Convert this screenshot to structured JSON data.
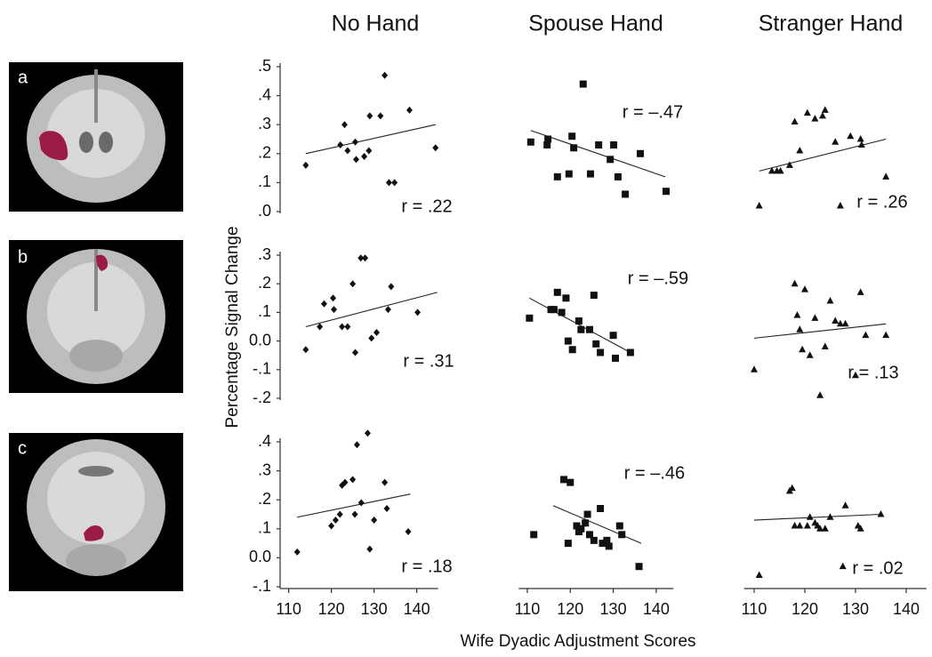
{
  "images": [
    {
      "label": "a"
    },
    {
      "label": "b"
    },
    {
      "label": "c"
    }
  ],
  "chart_data": [
    {
      "type": "scatter",
      "title": "No Hand",
      "marker": "diamond",
      "color": "#111111",
      "annotation": "r = .22",
      "x": [
        114,
        122.1,
        123.1,
        123.8,
        125.6,
        125.8,
        127.7,
        128.8,
        129,
        131.5,
        132.5,
        133.5,
        134.8,
        138.3,
        144.4
      ],
      "values": [
        0.16,
        0.23,
        0.3,
        0.21,
        0.24,
        0.18,
        0.19,
        0.21,
        0.33,
        0.33,
        0.47,
        0.1,
        0.1,
        0.35,
        0.22
      ],
      "trend": {
        "x": [
          114,
          144.4
        ],
        "y": [
          0.2,
          0.3
        ]
      },
      "xlim": [
        108,
        145
      ],
      "ylim": [
        0,
        0.5
      ],
      "yticks": [
        {
          "value": 0.5,
          "label": ".5"
        },
        {
          "value": 0.4,
          "label": ".4"
        },
        {
          "value": 0.3,
          "label": ".3"
        },
        {
          "value": 0.2,
          "label": ".2"
        },
        {
          "value": 0.1,
          "label": ".1"
        },
        {
          "value": 0,
          "label": ".0"
        }
      ]
    },
    {
      "type": "scatter",
      "title": "Spouse Hand",
      "marker": "square",
      "color": "#111111",
      "annotation": "r = –.47",
      "x": [
        110.8,
        114.6,
        114.8,
        117,
        119.7,
        120.4,
        120.8,
        123,
        124.7,
        126.6,
        129.3,
        130.1,
        131.1,
        132.8,
        136.3,
        142.3
      ],
      "values": [
        0.24,
        0.23,
        0.25,
        0.12,
        0.13,
        0.26,
        0.22,
        0.44,
        0.13,
        0.23,
        0.18,
        0.23,
        0.12,
        0.06,
        0.2,
        0.07
      ],
      "trend": {
        "x": [
          110.8,
          142.1
        ],
        "y": [
          0.28,
          0.12
        ]
      },
      "xlim": [
        108,
        144
      ],
      "ylim": [
        0,
        0.5
      ]
    },
    {
      "type": "scatter",
      "title": "Stranger Hand",
      "marker": "triangle",
      "color": "#111111",
      "annotation": "r = .26",
      "x": [
        111,
        113.5,
        114.5,
        115.2,
        117,
        118,
        119,
        120.5,
        122,
        123.5,
        124,
        126,
        127,
        129,
        131,
        131.2,
        136
      ],
      "values": [
        0.02,
        0.14,
        0.14,
        0.14,
        0.16,
        0.31,
        0.21,
        0.34,
        0.32,
        0.33,
        0.35,
        0.24,
        0.02,
        0.26,
        0.25,
        0.23,
        0.12
      ],
      "trend": {
        "x": [
          111,
          136
        ],
        "y": [
          0.14,
          0.25
        ]
      },
      "xlim": [
        108,
        144
      ],
      "ylim": [
        0,
        0.5
      ]
    },
    {
      "type": "scatter",
      "marker": "diamond",
      "color": "#111111",
      "annotation": "r = .31",
      "ylabel": "Percentage Signal Change",
      "x": [
        114,
        117.3,
        118.3,
        120.4,
        120.6,
        122.5,
        123.8,
        125,
        125.6,
        126.9,
        127.9,
        129.4,
        130.6,
        133.3,
        134,
        140.2
      ],
      "values": [
        -0.03,
        0.05,
        0.13,
        0.15,
        0.11,
        0.05,
        0.05,
        0.2,
        -0.04,
        0.29,
        0.29,
        0.01,
        0.03,
        0.11,
        0.19,
        0.1
      ],
      "trend": {
        "x": [
          114,
          144.8
        ],
        "y": [
          0.05,
          0.17
        ]
      },
      "xlim": [
        108,
        145
      ],
      "ylim": [
        -0.2,
        0.3
      ],
      "yticks": [
        {
          "value": 0.3,
          "label": ".3"
        },
        {
          "value": 0.2,
          "label": ".2"
        },
        {
          "value": 0.1,
          "label": ".1"
        },
        {
          "value": 0,
          "label": "0.0"
        },
        {
          "value": -0.1,
          "label": "-.1"
        },
        {
          "value": -0.2,
          "label": "-.2"
        }
      ]
    },
    {
      "type": "scatter",
      "marker": "square",
      "color": "#111111",
      "annotation": "r = –.59",
      "x": [
        110.5,
        115.5,
        116.2,
        117,
        118,
        119,
        119.5,
        120.5,
        122,
        122.5,
        124.5,
        125.5,
        126,
        127,
        130,
        130.5,
        134
      ],
      "values": [
        0.08,
        0.11,
        0.11,
        0.17,
        0.1,
        0.15,
        0,
        -0.03,
        0.07,
        0.04,
        0.04,
        0.16,
        -0.01,
        -0.04,
        0.02,
        -0.06,
        -0.04
      ],
      "trend": {
        "x": [
          110.5,
          134
        ],
        "y": [
          0.15,
          -0.04
        ]
      },
      "xlim": [
        108,
        144
      ],
      "ylim": [
        -0.2,
        0.3
      ]
    },
    {
      "type": "scatter",
      "marker": "triangle",
      "color": "#111111",
      "annotation": "r = .13",
      "x": [
        110,
        118,
        118.5,
        119,
        119.5,
        120,
        121,
        122,
        123,
        124,
        125,
        126,
        127,
        128,
        130,
        131,
        132,
        136
      ],
      "values": [
        -0.1,
        0.2,
        0.09,
        0.04,
        -0.03,
        0.18,
        -0.05,
        0.08,
        -0.19,
        -0.02,
        0.14,
        0.07,
        0.06,
        0.06,
        -0.12,
        0.17,
        0.02,
        0.02
      ],
      "trend": {
        "x": [
          110,
          136
        ],
        "y": [
          0.01,
          0.06
        ]
      },
      "xlim": [
        108,
        144
      ],
      "ylim": [
        -0.2,
        0.3
      ]
    },
    {
      "type": "scatter",
      "marker": "diamond",
      "color": "#111111",
      "annotation": "r = .18",
      "x": [
        112,
        120,
        121,
        122,
        122.5,
        123.2,
        125,
        125.5,
        126,
        127,
        128.5,
        129,
        130,
        132.5,
        133,
        138
      ],
      "values": [
        0.02,
        0.11,
        0.13,
        0.15,
        0.25,
        0.26,
        0.27,
        0.15,
        0.39,
        0.19,
        0.43,
        0.03,
        0.13,
        0.26,
        0.17,
        0.09
      ],
      "trend": {
        "x": [
          112,
          138.5
        ],
        "y": [
          0.14,
          0.22
        ]
      },
      "xlim": [
        108,
        145
      ],
      "ylim": [
        -0.1,
        0.4
      ],
      "xticks": [
        110,
        120,
        130,
        140
      ],
      "yticks": [
        {
          "value": 0.4,
          "label": ".4"
        },
        {
          "value": 0.3,
          "label": ".3"
        },
        {
          "value": 0.2,
          "label": ".2"
        },
        {
          "value": 0.1,
          "label": ".1"
        },
        {
          "value": 0,
          "label": "0.0"
        },
        {
          "value": -0.1,
          "label": "-.1"
        }
      ]
    },
    {
      "type": "scatter",
      "marker": "square",
      "color": "#111111",
      "annotation": "r = –.46",
      "xlabel": "Wife Dyadic Adjustment Scores",
      "x": [
        111.5,
        118.5,
        119.5,
        120,
        121.5,
        122,
        122.5,
        123.5,
        124,
        124.5,
        125.5,
        127,
        127.5,
        128.5,
        129,
        131.5,
        132,
        136
      ],
      "values": [
        0.08,
        0.27,
        0.05,
        0.26,
        0.11,
        0.09,
        0.1,
        0.12,
        0.15,
        0.08,
        0.06,
        0.17,
        0.05,
        0.06,
        0.04,
        0.11,
        0.08,
        -0.03
      ],
      "trend": {
        "x": [
          116,
          136.5
        ],
        "y": [
          0.18,
          0.05
        ]
      },
      "xlim": [
        108,
        144
      ],
      "ylim": [
        -0.1,
        0.4
      ],
      "xticks": [
        110,
        120,
        130,
        140
      ]
    },
    {
      "type": "scatter",
      "marker": "triangle",
      "color": "#111111",
      "annotation": "r = .02",
      "x": [
        111,
        117,
        117.5,
        118,
        119,
        120.5,
        121,
        122,
        122.5,
        123,
        124,
        125,
        127.5,
        128,
        130.5,
        131,
        135
      ],
      "values": [
        -0.06,
        0.23,
        0.24,
        0.11,
        0.11,
        0.11,
        0.14,
        0.12,
        0.11,
        0.1,
        0.1,
        0.14,
        -0.03,
        0.18,
        0.11,
        0.1,
        0.15
      ],
      "trend": {
        "x": [
          110,
          135
        ],
        "y": [
          0.13,
          0.15
        ]
      },
      "xlim": [
        108,
        144
      ],
      "ylim": [
        -0.1,
        0.4
      ],
      "xticks": [
        110,
        120,
        130,
        140
      ]
    }
  ]
}
